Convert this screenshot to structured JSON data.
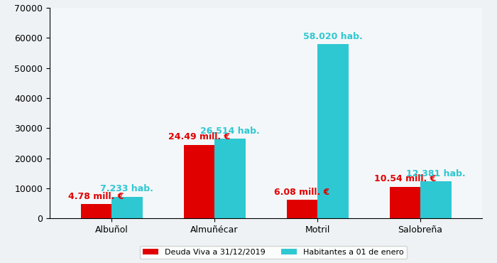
{
  "chart_data": {
    "type": "bar",
    "categories": [
      "Albuñol",
      "Almuñécar",
      "Motril",
      "Salobreña"
    ],
    "series": [
      {
        "name": "Deuda Viva a 31/12/2019",
        "color": "#e00000",
        "values": [
          4780,
          24490,
          6080,
          10540
        ],
        "value_labels": [
          "4.78 mill. €",
          "24.49 mill. €",
          "6.08 mill. €",
          "10.54 mill. €"
        ]
      },
      {
        "name": "Habitantes a 01 de enero",
        "color": "#2ec8d2",
        "values": [
          7233,
          26514,
          58020,
          12381
        ],
        "value_labels": [
          "7.233 hab.",
          "26.514 hab.",
          "58.020 hab.",
          "12.381 hab."
        ]
      }
    ],
    "ylim": [
      0,
      70000
    ],
    "yticks": [
      0,
      10000,
      20000,
      30000,
      40000,
      50000,
      60000,
      70000
    ],
    "grid": false,
    "data_labels": true,
    "legend": "bottom"
  }
}
